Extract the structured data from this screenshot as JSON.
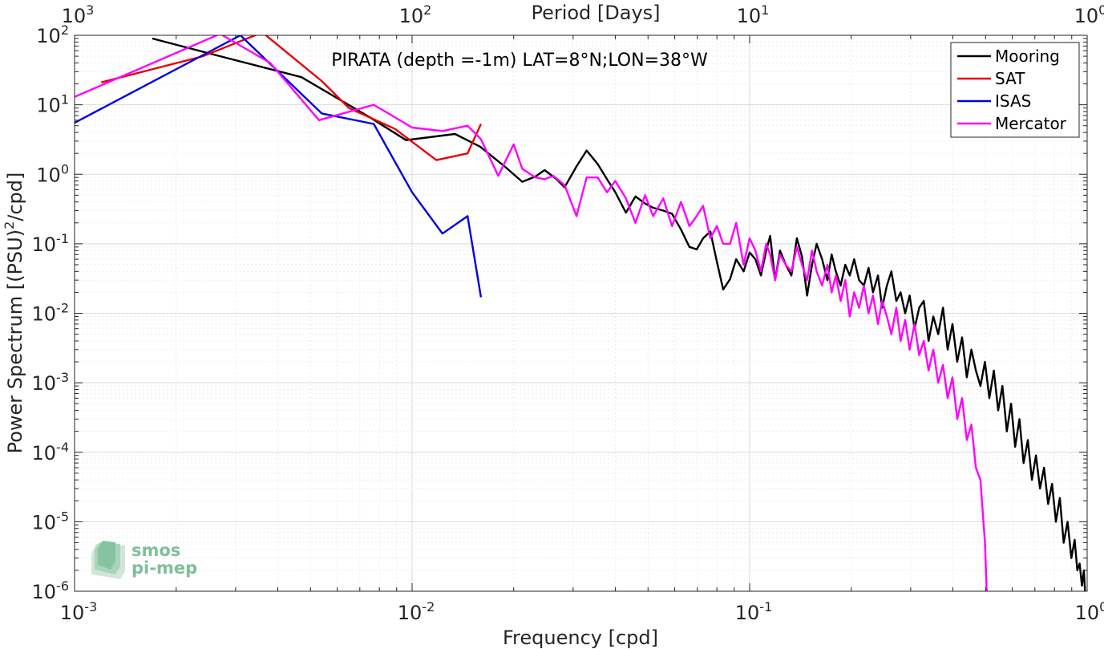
{
  "chart_data": {
    "type": "line",
    "title": "PIRATA (depth =-1m) LAT=8°N;LON=38°W",
    "xlabel": "Frequency [cpd]",
    "ylabel": "Power Spectrum [(PSU)",
    "ylabel_sup": "2",
    "ylabel_tail": "/cpd]",
    "top_xlabel": "Period [Days]",
    "x_scale": "log",
    "y_scale": "log",
    "xlim": [
      0.001,
      1
    ],
    "ylim": [
      1e-06,
      100
    ],
    "grid": true,
    "legend_position": "top-right",
    "x_ticks": [
      {
        "value": 0.001,
        "base": "10",
        "exp": "-3"
      },
      {
        "value": 0.01,
        "base": "10",
        "exp": "-2"
      },
      {
        "value": 0.1,
        "base": "10",
        "exp": "-1"
      },
      {
        "value": 1,
        "base": "10",
        "exp": "0"
      }
    ],
    "top_ticks": [
      {
        "freq": 0.001,
        "base": "10",
        "exp": "3"
      },
      {
        "freq": 0.01,
        "base": "10",
        "exp": "2"
      },
      {
        "freq": 0.1,
        "base": "10",
        "exp": "1"
      },
      {
        "freq": 1,
        "base": "10",
        "exp": "0"
      }
    ],
    "y_ticks": [
      {
        "value": 100,
        "base": "10",
        "exp": "2"
      },
      {
        "value": 10,
        "base": "10",
        "exp": "1"
      },
      {
        "value": 1,
        "base": "10",
        "exp": "0"
      },
      {
        "value": 0.1,
        "base": "10",
        "exp": "-1"
      },
      {
        "value": 0.01,
        "base": "10",
        "exp": "-2"
      },
      {
        "value": 0.001,
        "base": "10",
        "exp": "-3"
      },
      {
        "value": 0.0001,
        "base": "10",
        "exp": "-4"
      },
      {
        "value": 1e-05,
        "base": "10",
        "exp": "-5"
      },
      {
        "value": 1e-06,
        "base": "10",
        "exp": "-6"
      }
    ],
    "series": [
      {
        "name": "Mooring",
        "color": "#000000",
        "x": [
          0.0017,
          0.0027,
          0.0047,
          0.0075,
          0.0096,
          0.0134,
          0.0159,
          0.0188,
          0.0212,
          0.0232,
          0.0247,
          0.0268,
          0.0283,
          0.0307,
          0.0329,
          0.0355,
          0.0378,
          0.04,
          0.043,
          0.0459,
          0.049,
          0.0518,
          0.0555,
          0.0589,
          0.0626,
          0.0663,
          0.0697,
          0.0728,
          0.0765,
          0.08,
          0.0835,
          0.0875,
          0.0912,
          0.096,
          0.1,
          0.104,
          0.108,
          0.112,
          0.115,
          0.119,
          0.123,
          0.128,
          0.133,
          0.138,
          0.143,
          0.148,
          0.153,
          0.158,
          0.164,
          0.17,
          0.175,
          0.18,
          0.186,
          0.192,
          0.198,
          0.204,
          0.211,
          0.218,
          0.225,
          0.232,
          0.24,
          0.247,
          0.255,
          0.263,
          0.272,
          0.28,
          0.289,
          0.298,
          0.308,
          0.318,
          0.328,
          0.339,
          0.35,
          0.362,
          0.374,
          0.386,
          0.399,
          0.412,
          0.426,
          0.44,
          0.454,
          0.468,
          0.483,
          0.498,
          0.513,
          0.529,
          0.545,
          0.561,
          0.578,
          0.595,
          0.612,
          0.63,
          0.648,
          0.667,
          0.686,
          0.705,
          0.725,
          0.745,
          0.766,
          0.787,
          0.808,
          0.83,
          0.852,
          0.875,
          0.898,
          0.918,
          0.935,
          0.95,
          0.965,
          0.978,
          0.988
        ],
        "y": [
          90,
          50,
          25,
          6.6,
          3.1,
          3.8,
          2.5,
          1.3,
          0.78,
          0.93,
          1.15,
          0.85,
          0.65,
          1.3,
          2.2,
          1.4,
          0.85,
          0.55,
          0.28,
          0.48,
          0.38,
          0.33,
          0.3,
          0.27,
          0.16,
          0.09,
          0.083,
          0.12,
          0.15,
          0.055,
          0.022,
          0.031,
          0.06,
          0.04,
          0.075,
          0.06,
          0.035,
          0.08,
          0.13,
          0.03,
          0.08,
          0.05,
          0.035,
          0.12,
          0.065,
          0.018,
          0.05,
          0.1,
          0.06,
          0.03,
          0.07,
          0.04,
          0.025,
          0.05,
          0.035,
          0.06,
          0.03,
          0.025,
          0.045,
          0.02,
          0.035,
          0.012,
          0.025,
          0.04,
          0.015,
          0.02,
          0.01,
          0.018,
          0.006,
          0.012,
          0.015,
          0.004,
          0.009,
          0.005,
          0.012,
          0.003,
          0.007,
          0.002,
          0.0045,
          0.0012,
          0.003,
          0.0015,
          0.0009,
          0.002,
          0.0006,
          0.0015,
          0.0004,
          0.0009,
          0.0002,
          0.0005,
          0.00012,
          0.0003,
          7e-05,
          0.00015,
          4e-05,
          9e-05,
          3e-05,
          6e-05,
          1.8e-05,
          3.5e-05,
          1e-05,
          2.2e-05,
          5e-06,
          1e-05,
          3e-06,
          5.5e-06,
          2e-06,
          2.5e-06,
          1.2e-06,
          2e-06,
          8e-07
        ]
      },
      {
        "name": "SAT",
        "color": "#e8000b",
        "x": [
          0.0012,
          0.0024,
          0.0036,
          0.0054,
          0.0065,
          0.0089,
          0.0118,
          0.0146,
          0.016
        ],
        "y": [
          21,
          50,
          110,
          22,
          9,
          4.5,
          1.6,
          2.0,
          5.3
        ]
      },
      {
        "name": "ISAS",
        "color": "#0000e6",
        "x": [
          0.001,
          0.0031,
          0.0054,
          0.0077,
          0.01,
          0.0123,
          0.0146,
          0.016
        ],
        "y": [
          5.5,
          100,
          7.5,
          5.3,
          0.55,
          0.14,
          0.25,
          0.017
        ]
      },
      {
        "name": "Mercator",
        "color": "#ff00ff",
        "x": [
          0.001,
          0.0027,
          0.0038,
          0.0053,
          0.0077,
          0.01,
          0.0123,
          0.0146,
          0.016,
          0.018,
          0.02,
          0.0212,
          0.0232,
          0.0247,
          0.0262,
          0.0283,
          0.0307,
          0.0329,
          0.0355,
          0.0378,
          0.04,
          0.043,
          0.0459,
          0.049,
          0.0518,
          0.0555,
          0.0589,
          0.0626,
          0.0663,
          0.0697,
          0.0728,
          0.0765,
          0.08,
          0.0835,
          0.0875,
          0.0912,
          0.096,
          0.1,
          0.104,
          0.108,
          0.112,
          0.115,
          0.119,
          0.123,
          0.128,
          0.133,
          0.138,
          0.143,
          0.148,
          0.153,
          0.158,
          0.164,
          0.17,
          0.175,
          0.18,
          0.186,
          0.192,
          0.198,
          0.204,
          0.211,
          0.218,
          0.225,
          0.232,
          0.24,
          0.247,
          0.255,
          0.263,
          0.272,
          0.28,
          0.289,
          0.298,
          0.308,
          0.318,
          0.328,
          0.339,
          0.35,
          0.362,
          0.374,
          0.386,
          0.399,
          0.412,
          0.426,
          0.44,
          0.454,
          0.468,
          0.483,
          0.498,
          0.504
        ],
        "y": [
          13,
          105,
          40,
          6,
          10,
          4.7,
          4.2,
          5.0,
          3.2,
          0.95,
          2.7,
          1.2,
          0.9,
          0.85,
          0.95,
          0.7,
          0.25,
          0.9,
          0.9,
          0.55,
          0.8,
          0.45,
          0.2,
          0.5,
          0.25,
          0.45,
          0.18,
          0.4,
          0.18,
          0.25,
          0.35,
          0.12,
          0.18,
          0.1,
          0.1,
          0.2,
          0.05,
          0.12,
          0.08,
          0.04,
          0.1,
          0.07,
          0.03,
          0.07,
          0.05,
          0.04,
          0.09,
          0.05,
          0.03,
          0.08,
          0.04,
          0.025,
          0.05,
          0.02,
          0.035,
          0.015,
          0.03,
          0.009,
          0.02,
          0.012,
          0.025,
          0.01,
          0.018,
          0.007,
          0.015,
          0.009,
          0.005,
          0.012,
          0.004,
          0.008,
          0.003,
          0.007,
          0.0025,
          0.004,
          0.0015,
          0.003,
          0.001,
          0.0018,
          0.0006,
          0.0012,
          0.0003,
          0.0006,
          0.00015,
          0.00025,
          6e-05,
          4e-05,
          5e-06,
          1e-06
        ]
      }
    ]
  },
  "watermark": {
    "line1": "smos",
    "line2": "pi-mep",
    "color": "#7fbf9a"
  }
}
